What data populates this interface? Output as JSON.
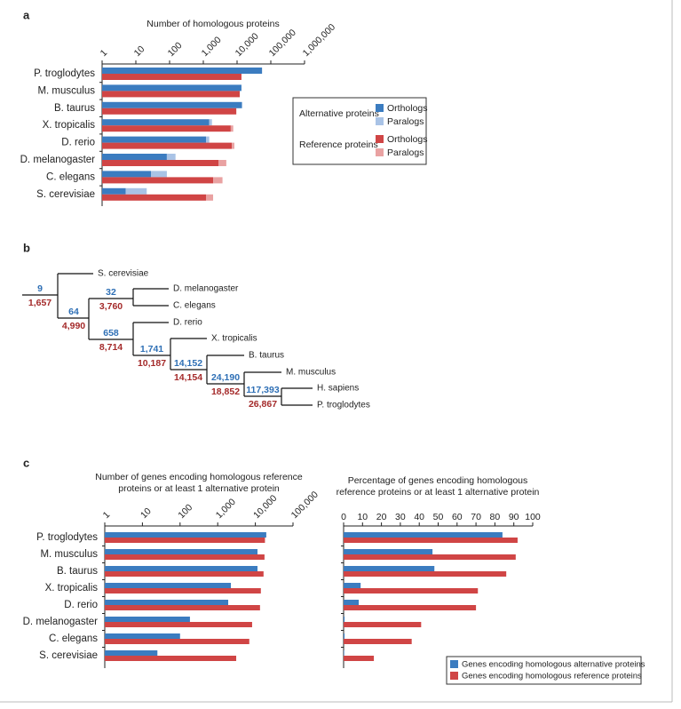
{
  "chart_data": [
    {
      "panel": "a",
      "type": "bar",
      "orientation": "horizontal",
      "stacked": true,
      "title": "Number of homologous proteins",
      "log_scale": true,
      "xlim": [
        1,
        1000000
      ],
      "xticks": [
        1,
        10,
        100,
        {
          "value": 1000,
          "label": "1,000"
        },
        {
          "value": 10000,
          "label": "10,000"
        },
        {
          "value": 100000,
          "label": "100,000"
        },
        {
          "value": 1000000,
          "label": "1,000,000"
        }
      ],
      "categories": [
        "P. troglodytes",
        "M. musculus",
        "B. taurus",
        "X. tropicalis",
        "D. rerio",
        "D. melanogaster",
        "C. elegans",
        "S. cerevisiae"
      ],
      "groups": [
        {
          "name": "Alternative proteins",
          "series": [
            {
              "name": "Orthologs",
              "color": "#3b7cc0",
              "values": [
                55000,
                13500,
                14000,
                1500,
                1200,
                83,
                28,
                5
              ]
            },
            {
              "name": "Paralogs",
              "color": "#a9c3e6",
              "values": [
                0,
                0,
                0,
                300,
                300,
                67,
                55,
                16
              ]
            }
          ]
        },
        {
          "name": "Reference proteins",
          "series": [
            {
              "name": "Orthologs",
              "color": "#d04545",
              "values": [
                13500,
                12000,
                9500,
                6500,
                7000,
                2800,
                1950,
                1200
              ]
            },
            {
              "name": "Paralogs",
              "color": "#e9a2a2",
              "values": [
                0,
                0,
                0,
                1200,
                1300,
                2000,
                1750,
                750
              ]
            }
          ]
        }
      ]
    },
    {
      "panel": "b",
      "type": "tree",
      "leaves": [
        "S. cerevisiae",
        "D. melanogaster",
        "C. elegans",
        "D. rerio",
        "X. tropicalis",
        "B. taurus",
        "M. musculus",
        "H. sapiens",
        "P. troglodytes"
      ],
      "alternative": {
        "color": "#2e6fb5",
        "values": [
          9,
          64,
          32,
          658,
          1741,
          14152,
          24190,
          117393
        ],
        "value_labels": [
          "9",
          "64",
          "32",
          "658",
          "1,741",
          "14,152",
          "24,190",
          "117,393"
        ]
      },
      "reference": {
        "color": "#a42a2a",
        "values": [
          1657,
          4990,
          3760,
          8714,
          10187,
          14154,
          18852,
          26867
        ],
        "value_labels": [
          "1,657",
          "4,990",
          "3,760",
          "8,714",
          "10,187",
          "14,154",
          "18,852",
          "26,867"
        ]
      }
    },
    {
      "panel": "c",
      "type": "bar",
      "orientation": "horizontal",
      "title": [
        "Number of genes encoding homologous reference",
        "proteins or at least 1 alternative protein"
      ],
      "log_scale": true,
      "xlim": [
        1,
        100000
      ],
      "xticks": [
        1,
        10,
        100,
        {
          "value": 1000,
          "label": "1,000"
        },
        {
          "value": 10000,
          "label": "10,000"
        },
        {
          "value": 100000,
          "label": "100,000"
        }
      ],
      "categories": [
        "P. troglodytes",
        "M. musculus",
        "B. taurus",
        "X. tropicalis",
        "D. rerio",
        "D. melanogaster",
        "C. elegans",
        "S. cerevisiae"
      ],
      "series": [
        {
          "name": "Genes encoding homologous alternative proteins",
          "color": "#3b7cc0",
          "values": [
            19500,
            11400,
            11400,
            2240,
            1900,
            183,
            100,
            25
          ]
        },
        {
          "name": "Genes encoding homologous reference proteins",
          "color": "#d04545",
          "values": [
            18000,
            17500,
            16500,
            14000,
            13300,
            8200,
            6900,
            3100
          ]
        }
      ]
    },
    {
      "type": "bar",
      "orientation": "horizontal",
      "title": [
        "Percentage of genes encoding homologous",
        "reference proteins or at least 1 alternative protein"
      ],
      "log_scale": false,
      "xlim": [
        0,
        100
      ],
      "xticks": [
        0,
        10,
        20,
        30,
        40,
        50,
        60,
        70,
        80,
        90,
        100
      ],
      "series": [
        {
          "color": "#3b7cc0",
          "values": [
            84,
            47,
            48,
            9,
            8,
            0.5,
            0.5,
            0.3
          ]
        },
        {
          "color": "#d04545",
          "values": [
            92,
            91,
            86,
            71,
            70,
            41,
            36,
            16
          ]
        }
      ]
    }
  ]
}
